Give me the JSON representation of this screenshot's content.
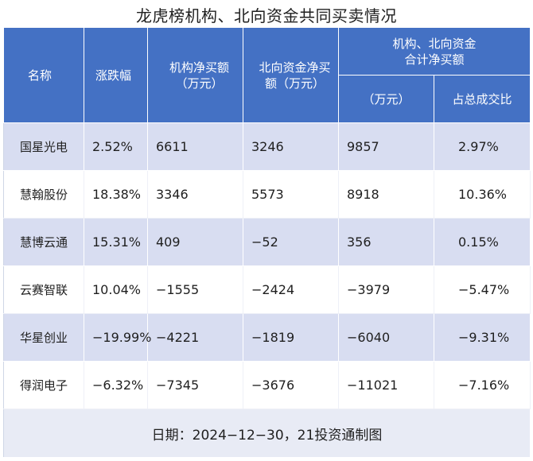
{
  "title": "龙虎榜机构、北向资金共同买卖情况",
  "headers": {
    "name": "名称",
    "change": "涨跌幅",
    "inst_net_line1": "机构净买额",
    "inst_net_line2": "（万元）",
    "north_net_line1": "北向资金净买",
    "north_net_line2": "额（万元）",
    "combined_line1": "机构、北向资金",
    "combined_line2": "合计净买额",
    "combined_unit": "（万元）",
    "ratio": "占总成交比"
  },
  "rows": [
    {
      "name": "国星光电",
      "change": "2.52%",
      "inst_net": "6611",
      "north_net": "3246",
      "combined": "9857",
      "ratio": "2.97%"
    },
    {
      "name": "慧翰股份",
      "change": "18.38%",
      "inst_net": "3346",
      "north_net": "5573",
      "combined": "8918",
      "ratio": "10.36%"
    },
    {
      "name": "慧博云通",
      "change": "15.31%",
      "inst_net": "409",
      "north_net": "−52",
      "combined": "356",
      "ratio": "0.15%"
    },
    {
      "name": "云赛智联",
      "change": "10.04%",
      "inst_net": "−1555",
      "north_net": "−2424",
      "combined": "−3979",
      "ratio": "−5.47%"
    },
    {
      "name": "华星创业",
      "change": "−19.99%",
      "inst_net": "−4221",
      "north_net": "−1819",
      "combined": "−6040",
      "ratio": "−9.31%"
    },
    {
      "name": "得润电子",
      "change": "−6.32%",
      "inst_net": "−7345",
      "north_net": "−3676",
      "combined": "−11021",
      "ratio": "−7.16%"
    }
  ],
  "footer": "日期：2024−12−30，21投资通制图",
  "colors": {
    "header_bg": "#4471c4",
    "row_alt": "#d8ddf1",
    "footer_bg": "#e8ebf5"
  }
}
